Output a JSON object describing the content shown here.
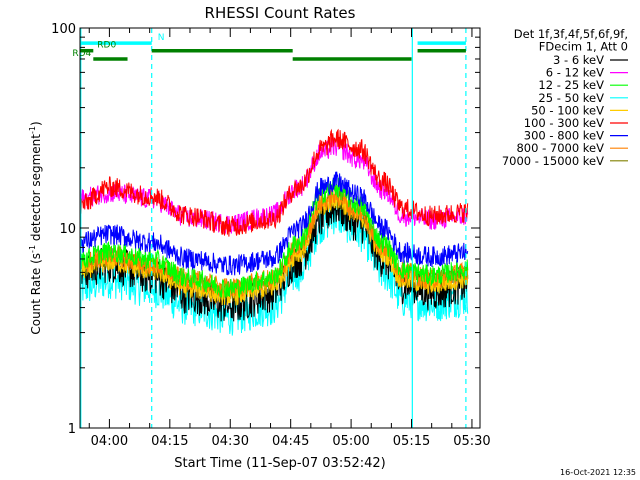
{
  "chart_data": {
    "type": "line",
    "title": "RHESSI Count Rates",
    "ylabel_main": "Count Rate (s",
    "ylabel_sup": "-1",
    "ylabel_mid": " detector segment",
    "ylabel_sup2": "-1",
    "ylabel_end": ")",
    "xlabel": "Start Time (11-Sep-07 03:52:42)",
    "yscale": "log",
    "ylim": [
      1,
      100
    ],
    "xlim": [
      "03:52:42",
      "05:32:00"
    ],
    "ytick_labels": [
      "1",
      "10",
      "100"
    ],
    "xticks": [
      {
        "label": "04:00",
        "minutes": 0
      },
      {
        "label": "04:15",
        "minutes": 15
      },
      {
        "label": "04:30",
        "minutes": 30
      },
      {
        "label": "04:45",
        "minutes": 45
      },
      {
        "label": "05:00",
        "minutes": 60
      },
      {
        "label": "05:15",
        "minutes": 75
      },
      {
        "label": "05:30",
        "minutes": 90
      }
    ],
    "legend_header": [
      "Det 1f,3f,4f,5f,6f,9f,",
      "FDecim 1, Att 0"
    ],
    "legend_position": "right",
    "series": [
      {
        "name": "3 - 6 keV",
        "color": "#000000",
        "points": [
          [
            -7.3,
            6.0
          ],
          [
            0,
            6.6
          ],
          [
            10,
            5.8
          ],
          [
            20,
            4.6
          ],
          [
            30,
            4.1
          ],
          [
            40,
            4.7
          ],
          [
            47,
            7.0
          ],
          [
            53,
            11.2
          ],
          [
            56,
            12.8
          ],
          [
            62,
            10.5
          ],
          [
            68,
            7.0
          ],
          [
            73,
            5.2
          ],
          [
            80,
            4.8
          ],
          [
            89,
            5.2
          ]
        ]
      },
      {
        "name": "6 - 12 keV",
        "color": "#ff00ff",
        "points": [
          [
            -7.3,
            14.0
          ],
          [
            0,
            15.0
          ],
          [
            10,
            14.0
          ],
          [
            20,
            11.2
          ],
          [
            30,
            10.5
          ],
          [
            40,
            11.5
          ],
          [
            47,
            16.0
          ],
          [
            53,
            24.0
          ],
          [
            56,
            25.5
          ],
          [
            62,
            22.0
          ],
          [
            68,
            15.5
          ],
          [
            73,
            11.5
          ],
          [
            80,
            11.0
          ],
          [
            89,
            11.5
          ]
        ]
      },
      {
        "name": "12 - 25 keV",
        "color": "#00ff00",
        "points": [
          [
            -7.3,
            7.0
          ],
          [
            0,
            7.6
          ],
          [
            10,
            7.0
          ],
          [
            20,
            5.6
          ],
          [
            30,
            5.0
          ],
          [
            40,
            5.6
          ],
          [
            47,
            8.5
          ],
          [
            53,
            15.0
          ],
          [
            56,
            16.0
          ],
          [
            62,
            13.0
          ],
          [
            68,
            8.5
          ],
          [
            73,
            6.2
          ],
          [
            80,
            5.8
          ],
          [
            89,
            6.2
          ]
        ]
      },
      {
        "name": "25 - 50 keV",
        "color": "#00ffff",
        "points": [
          [
            -7.3,
            5.0
          ],
          [
            0,
            5.5
          ],
          [
            10,
            5.0
          ],
          [
            20,
            4.0
          ],
          [
            30,
            3.6
          ],
          [
            40,
            4.0
          ],
          [
            47,
            6.0
          ],
          [
            53,
            10.5
          ],
          [
            56,
            11.5
          ],
          [
            62,
            9.5
          ],
          [
            68,
            6.0
          ],
          [
            73,
            4.4
          ],
          [
            80,
            4.2
          ],
          [
            89,
            4.5
          ]
        ]
      },
      {
        "name": "50 - 100 keV",
        "color": "#ffcc00",
        "points": [
          [
            -7.3,
            6.2
          ],
          [
            0,
            6.8
          ],
          [
            10,
            6.2
          ],
          [
            20,
            5.0
          ],
          [
            30,
            4.6
          ],
          [
            40,
            5.0
          ],
          [
            47,
            7.5
          ],
          [
            53,
            12.8
          ],
          [
            56,
            14.0
          ],
          [
            62,
            11.5
          ],
          [
            68,
            7.5
          ],
          [
            73,
            5.5
          ],
          [
            80,
            5.2
          ],
          [
            89,
            5.6
          ]
        ]
      },
      {
        "name": "100 - 300 keV",
        "color": "#ff0000",
        "points": [
          [
            -7.3,
            13.0
          ],
          [
            0,
            16.0
          ],
          [
            10,
            14.5
          ],
          [
            20,
            11.5
          ],
          [
            30,
            10.2
          ],
          [
            40,
            11.0
          ],
          [
            47,
            16.0
          ],
          [
            53,
            25.0
          ],
          [
            56,
            28.0
          ],
          [
            62,
            25.0
          ],
          [
            68,
            17.0
          ],
          [
            73,
            12.5
          ],
          [
            80,
            11.5
          ],
          [
            89,
            12.0
          ]
        ]
      },
      {
        "name": "300 - 800 keV",
        "color": "#0000ff",
        "points": [
          [
            -7.3,
            8.5
          ],
          [
            0,
            9.3
          ],
          [
            10,
            8.5
          ],
          [
            20,
            7.0
          ],
          [
            30,
            6.5
          ],
          [
            40,
            7.0
          ],
          [
            47,
            10.0
          ],
          [
            53,
            16.0
          ],
          [
            56,
            17.0
          ],
          [
            62,
            14.5
          ],
          [
            68,
            10.0
          ],
          [
            73,
            7.5
          ],
          [
            80,
            7.2
          ],
          [
            89,
            7.5
          ]
        ]
      },
      {
        "name": "800 - 7000 keV",
        "color": "#ff8000",
        "points": [
          [
            -7.3,
            6.6
          ],
          [
            0,
            7.3
          ],
          [
            10,
            6.6
          ],
          [
            20,
            5.5
          ],
          [
            30,
            5.0
          ],
          [
            40,
            5.5
          ],
          [
            47,
            8.0
          ],
          [
            53,
            13.5
          ],
          [
            56,
            14.5
          ],
          [
            62,
            12.0
          ],
          [
            68,
            8.0
          ],
          [
            73,
            6.0
          ],
          [
            80,
            5.6
          ],
          [
            89,
            6.0
          ]
        ]
      },
      {
        "name": "7000 - 15000 keV",
        "color": "#808000",
        "points": [
          [
            -7.3,
            6.4
          ],
          [
            0,
            7.0
          ],
          [
            10,
            6.4
          ],
          [
            20,
            5.3
          ],
          [
            30,
            4.8
          ],
          [
            40,
            5.3
          ],
          [
            47,
            7.8
          ],
          [
            53,
            13.0
          ],
          [
            56,
            14.0
          ],
          [
            62,
            11.8
          ],
          [
            68,
            7.8
          ],
          [
            73,
            5.8
          ],
          [
            80,
            5.5
          ],
          [
            89,
            5.8
          ]
        ]
      }
    ],
    "flags": [
      {
        "label": "N",
        "color": "#00ffff",
        "y_level": 84,
        "segments": [
          [
            -7.3,
            10.5
          ],
          [
            76.5,
            88.5
          ]
        ]
      },
      {
        "label": "RD0",
        "color": "#008000",
        "y_level": 77,
        "segments": [
          [
            -7.3,
            -4.0
          ],
          [
            10.5,
            45.5
          ],
          [
            76.5,
            88.5
          ]
        ]
      },
      {
        "label": "RD4",
        "color": "#008000",
        "y_level": 70,
        "segments": [
          [
            -4.0,
            4.5
          ],
          [
            45.5,
            75.0
          ]
        ]
      }
    ],
    "vlines": [
      {
        "minutes": -7.1,
        "style": "solid",
        "color": "#00ffff"
      },
      {
        "minutes": 10.5,
        "style": "dashed",
        "color": "#00ffff"
      },
      {
        "minutes": 75.2,
        "style": "solid",
        "color": "#00ffff"
      },
      {
        "minutes": 88.5,
        "style": "dashed",
        "color": "#00ffff"
      }
    ]
  },
  "timestamp": "16-Oct-2021 12:35"
}
